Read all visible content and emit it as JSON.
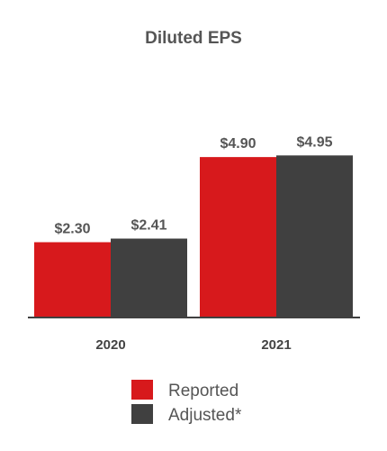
{
  "chart_data": {
    "type": "bar",
    "title": "Diluted EPS",
    "xlabel": "",
    "ylabel": "",
    "categories": [
      "2020",
      "2021"
    ],
    "series": [
      {
        "name": "Reported",
        "color": "#d7191c",
        "values": [
          2.3,
          4.9
        ],
        "labels": [
          "$2.30",
          "$4.90"
        ]
      },
      {
        "name": "Adjusted*",
        "color": "#404040",
        "values": [
          2.41,
          4.95
        ],
        "labels": [
          "$2.41",
          "$4.95"
        ]
      }
    ],
    "ylim": [
      0,
      5.5
    ],
    "grid": false,
    "legend": "bottom",
    "axis_color": "#404040"
  }
}
